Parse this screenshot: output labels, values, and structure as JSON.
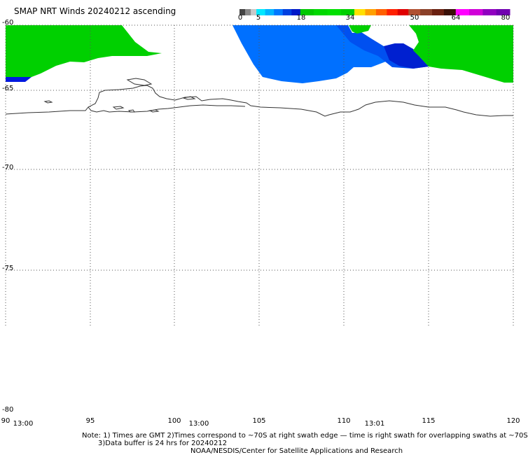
{
  "title": "SMAP NRT Winds 20240212 ascending",
  "colorbar": {
    "segments": [
      {
        "from": 0,
        "to": 5,
        "colors": [
          "#444444",
          "#888888",
          "#c8c8c8"
        ]
      },
      {
        "from": 5,
        "to": 18,
        "colors": [
          "#00e8ff",
          "#00b4ff",
          "#0078ff",
          "#0040e0",
          "#0018c8"
        ]
      },
      {
        "from": 18,
        "to": 34,
        "colors": [
          "#00c800",
          "#00d800",
          "#00e000",
          "#00d000"
        ]
      },
      {
        "from": 34,
        "to": 50,
        "colors": [
          "#ffe000",
          "#ffa000",
          "#ff6000",
          "#ff2000",
          "#e00000"
        ]
      },
      {
        "from": 50,
        "to": 64,
        "colors": [
          "#b05030",
          "#8a4028",
          "#6a2010",
          "#3a1008"
        ]
      },
      {
        "from": 64,
        "to": 80,
        "colors": [
          "#ff00ff",
          "#d000d8",
          "#9000c0",
          "#7000b0"
        ]
      }
    ],
    "labels": [
      "0",
      "5",
      "18",
      "34",
      "50",
      "64",
      "80"
    ]
  },
  "map": {
    "lat_labels": [
      "-60",
      "-65",
      "-70",
      "-75",
      "-80"
    ],
    "lon_labels": [
      "90",
      "95",
      "100",
      "105",
      "110",
      "115",
      "120"
    ],
    "time_labels": [
      "13:00",
      "13:00",
      "13:01"
    ],
    "wind_colors": {
      "green": "#00d000",
      "light_blue": "#0066ff",
      "dark_blue": "#0033dd",
      "deep_blue": "#0000cc",
      "coast": "#333333",
      "grid": "#555555"
    }
  },
  "notes": {
    "line1": "Note: 1) Times are GMT 2)Times correspond to ~70S at right swath edge — time is right swath for overlapping swaths at ~70S",
    "line2": "3)Data buffer is 24 hrs for 20240212",
    "line3": "NOAA/NESDIS/Center for Satellite Applications and Research"
  }
}
